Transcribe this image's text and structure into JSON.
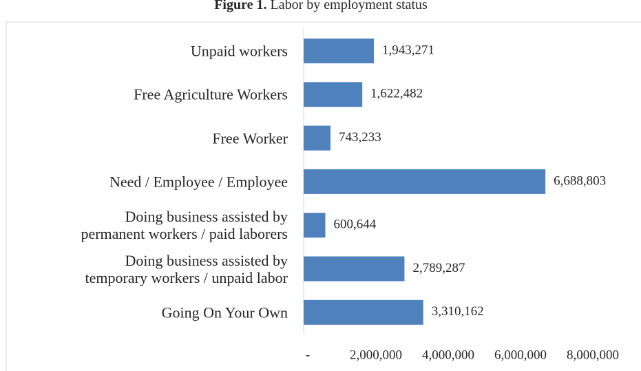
{
  "chart_data": {
    "type": "bar",
    "orientation": "horizontal",
    "title_label": "Figure 1.",
    "title": "Labor by employment status",
    "categories": [
      "Unpaid workers",
      "Free Agriculture Workers",
      "Free Worker",
      "Need / Employee / Employee",
      "Doing business assisted by\npermanent workers / paid laborers",
      "Doing business assisted by\ntemporary workers / unpaid labor",
      "Going On Your Own"
    ],
    "values": [
      1943271,
      1622482,
      743233,
      6688803,
      600644,
      2789287,
      3310162
    ],
    "value_labels": [
      "1,943,271",
      "1,622,482",
      "743,233",
      "6,688,803",
      "600,644",
      "2,789,287",
      "3,310,162"
    ],
    "color": "#4f81bd",
    "xlim": [
      0,
      8000000
    ],
    "xticks": [
      {
        "value": 0,
        "label": "-"
      },
      {
        "value": 2000000,
        "label": "2,000,000"
      },
      {
        "value": 4000000,
        "label": "4,000,000"
      },
      {
        "value": 6000000,
        "label": "6,000,000"
      },
      {
        "value": 8000000,
        "label": "8,000,000"
      }
    ],
    "grid": false
  }
}
